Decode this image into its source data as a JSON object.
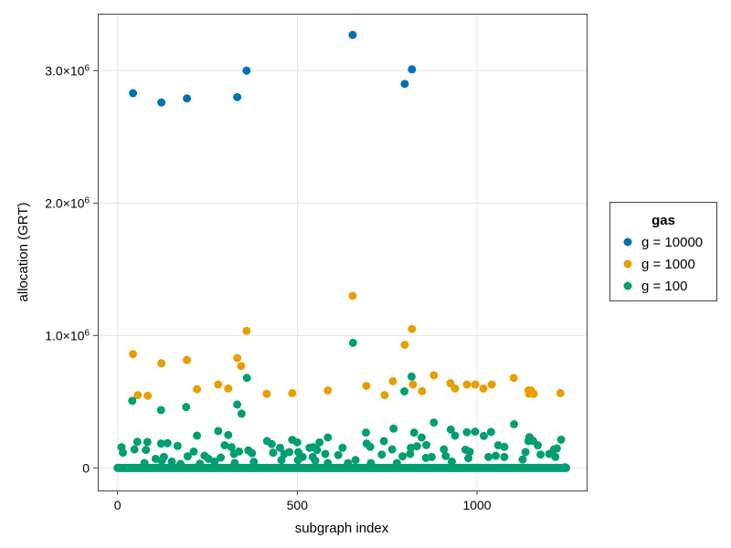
{
  "chart_data": {
    "type": "scatter",
    "xlabel": "subgraph index",
    "ylabel": "allocation (GRT)",
    "xlim": [
      -55,
      1305
    ],
    "ylim": [
      -170000,
      3430000
    ],
    "grid": true,
    "x_ticks": [
      {
        "value": 0,
        "label": "0"
      },
      {
        "value": 500,
        "label": "500"
      },
      {
        "value": 1000,
        "label": "1000"
      }
    ],
    "y_ticks": [
      {
        "value": 0,
        "label": "0"
      },
      {
        "value": 1000000,
        "label": "1.0×10⁶"
      },
      {
        "value": 2000000,
        "label": "2.0×10⁶"
      },
      {
        "value": 3000000,
        "label": "3.0×10⁶"
      }
    ],
    "legend": {
      "title": "gas",
      "placement": "right"
    },
    "series": [
      {
        "name": "g = 10000",
        "color": "#0072b2",
        "points": [
          [
            43,
            2830000
          ],
          [
            122,
            2760000
          ],
          [
            193,
            2790000
          ],
          [
            333,
            2800000
          ],
          [
            359,
            3000000
          ],
          [
            654,
            3270000
          ],
          [
            799,
            2900000
          ],
          [
            819,
            3010000
          ]
        ]
      },
      {
        "name": "g = 1000",
        "color": "#e69f00",
        "points": [
          [
            43,
            860000
          ],
          [
            56,
            550000
          ],
          [
            84,
            545000
          ],
          [
            122,
            790000
          ],
          [
            193,
            815000
          ],
          [
            221,
            595000
          ],
          [
            280,
            630000
          ],
          [
            308,
            600000
          ],
          [
            333,
            830000
          ],
          [
            344,
            770000
          ],
          [
            359,
            1035000
          ],
          [
            415,
            560000
          ],
          [
            486,
            565000
          ],
          [
            585,
            585000
          ],
          [
            654,
            1300000
          ],
          [
            692,
            620000
          ],
          [
            743,
            550000
          ],
          [
            766,
            655000
          ],
          [
            799,
            930000
          ],
          [
            819,
            1050000
          ],
          [
            822,
            630000
          ],
          [
            847,
            580000
          ],
          [
            880,
            700000
          ],
          [
            926,
            640000
          ],
          [
            939,
            600000
          ],
          [
            972,
            630000
          ],
          [
            995,
            630000
          ],
          [
            1018,
            600000
          ],
          [
            1041,
            630000
          ],
          [
            1102,
            680000
          ],
          [
            1143,
            585000
          ],
          [
            1145,
            560000
          ],
          [
            1150,
            585000
          ],
          [
            1158,
            560000
          ],
          [
            1232,
            565000
          ]
        ]
      },
      {
        "name": "g = 100",
        "color": "#009e73",
        "zero_values_x_range": [
          0,
          1248
        ],
        "points": [
          [
            41,
            507000
          ],
          [
            121,
            437000
          ],
          [
            191,
            460000
          ],
          [
            360,
            680000
          ],
          [
            333,
            479000
          ],
          [
            345,
            410000
          ],
          [
            655,
            945000
          ],
          [
            818,
            690000
          ],
          [
            798,
            578000
          ],
          [
            11,
            157000
          ],
          [
            15,
            115000
          ],
          [
            47,
            140000
          ],
          [
            55,
            198000
          ],
          [
            79,
            136000
          ],
          [
            83,
            196000
          ],
          [
            75,
            37000
          ],
          [
            106,
            69000
          ],
          [
            121,
            184000
          ],
          [
            129,
            83000
          ],
          [
            139,
            187000
          ],
          [
            123,
            55000
          ],
          [
            151,
            48000
          ],
          [
            167,
            166000
          ],
          [
            175,
            30000
          ],
          [
            195,
            88000
          ],
          [
            212,
            124000
          ],
          [
            221,
            244000
          ],
          [
            229,
            32000
          ],
          [
            242,
            92000
          ],
          [
            253,
            69000
          ],
          [
            270,
            48000
          ],
          [
            280,
            279000
          ],
          [
            287,
            78000
          ],
          [
            298,
            171000
          ],
          [
            308,
            249000
          ],
          [
            317,
            157000
          ],
          [
            324,
            106000
          ],
          [
            338,
            124000
          ],
          [
            326,
            37000
          ],
          [
            364,
            133000
          ],
          [
            374,
            111000
          ],
          [
            379,
            46000
          ],
          [
            416,
            203000
          ],
          [
            429,
            180000
          ],
          [
            433,
            115000
          ],
          [
            452,
            152000
          ],
          [
            456,
            60000
          ],
          [
            464,
            106000
          ],
          [
            478,
            120000
          ],
          [
            486,
            212000
          ],
          [
            500,
            193000
          ],
          [
            503,
            120000
          ],
          [
            502,
            60000
          ],
          [
            515,
            83000
          ],
          [
            534,
            152000
          ],
          [
            544,
            157000
          ],
          [
            555,
            136000
          ],
          [
            562,
            193000
          ],
          [
            543,
            83000
          ],
          [
            550,
            55000
          ],
          [
            578,
            106000
          ],
          [
            585,
            230000
          ],
          [
            585,
            37000
          ],
          [
            614,
            97000
          ],
          [
            626,
            152000
          ],
          [
            662,
            60000
          ],
          [
            641,
            37000
          ],
          [
            691,
            267000
          ],
          [
            693,
            184000
          ],
          [
            703,
            159000
          ],
          [
            705,
            37000
          ],
          [
            735,
            101000
          ],
          [
            741,
            203000
          ],
          [
            768,
            297000
          ],
          [
            764,
            140000
          ],
          [
            777,
            37000
          ],
          [
            793,
            88000
          ],
          [
            816,
            152000
          ],
          [
            825,
            267000
          ],
          [
            833,
            164000
          ],
          [
            846,
            230000
          ],
          [
            859,
            173000
          ],
          [
            858,
            76000
          ],
          [
            874,
            83000
          ],
          [
            880,
            343000
          ],
          [
            814,
            106000
          ],
          [
            908,
            140000
          ],
          [
            913,
            90000
          ],
          [
            927,
            290000
          ],
          [
            939,
            244000
          ],
          [
            930,
            48000
          ],
          [
            972,
            270000
          ],
          [
            968,
            138000
          ],
          [
            980,
            122000
          ],
          [
            995,
            274000
          ],
          [
            976,
            74000
          ],
          [
            1019,
            242000
          ],
          [
            1032,
            83000
          ],
          [
            1039,
            272000
          ],
          [
            1052,
            92000
          ],
          [
            1059,
            171000
          ],
          [
            1076,
            159000
          ],
          [
            1076,
            83000
          ],
          [
            1103,
            330000
          ],
          [
            1127,
            64000
          ],
          [
            1135,
            120000
          ],
          [
            1146,
            233000
          ],
          [
            1143,
            203000
          ],
          [
            1156,
            205000
          ],
          [
            1169,
            171000
          ],
          [
            1177,
            101000
          ],
          [
            1201,
            106000
          ],
          [
            1214,
            140000
          ],
          [
            1222,
            147000
          ],
          [
            1218,
            83000
          ],
          [
            1234,
            214000
          ],
          [
            1245,
            5000
          ]
        ]
      }
    ]
  }
}
